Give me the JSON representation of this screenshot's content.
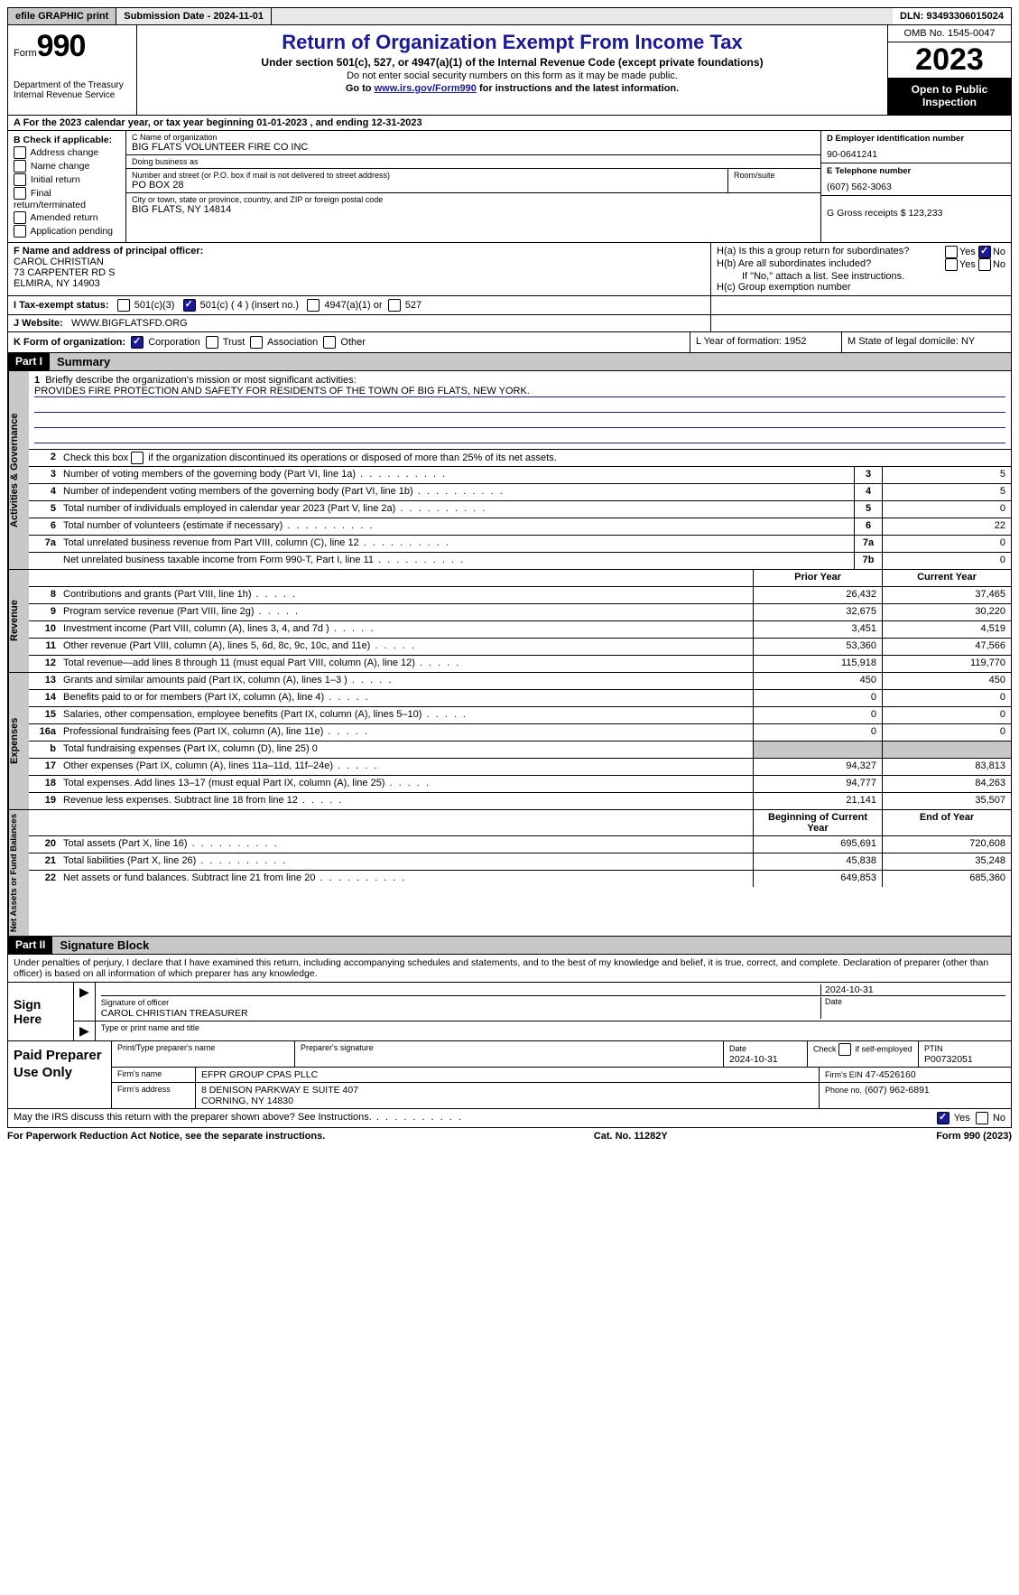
{
  "topbar": {
    "efile": "efile GRAPHIC print",
    "submission": "Submission Date - 2024-11-01",
    "dln": "DLN: 93493306015024"
  },
  "header": {
    "form_label": "Form",
    "form_num": "990",
    "title": "Return of Organization Exempt From Income Tax",
    "subtitle": "Under section 501(c), 527, or 4947(a)(1) of the Internal Revenue Code (except private foundations)",
    "ssn_note": "Do not enter social security numbers on this form as it may be made public.",
    "goto_pre": "Go to ",
    "goto_url": "www.irs.gov/Form990",
    "goto_post": " for instructions and the latest information.",
    "dept": "Department of the Treasury Internal Revenue Service",
    "omb": "OMB No. 1545-0047",
    "year": "2023",
    "open_public": "Open to Public Inspection"
  },
  "section_a": {
    "label": "A  For the 2023 calendar year, or tax year beginning 01-01-2023    , and ending 12-31-2023"
  },
  "col_b": {
    "label": "B Check if applicable:",
    "opts": [
      "Address change",
      "Name change",
      "Initial return",
      "Final return/terminated",
      "Amended return",
      "Application pending"
    ]
  },
  "col_c": {
    "name_label": "C Name of organization",
    "name": "BIG FLATS VOLUNTEER FIRE CO INC",
    "dba_label": "Doing business as",
    "dba": "",
    "addr_label": "Number and street (or P.O. box if mail is not delivered to street address)",
    "addr": "PO BOX 28",
    "room_label": "Room/suite",
    "room": "",
    "city_label": "City or town, state or province, country, and ZIP or foreign postal code",
    "city": "BIG FLATS, NY  14814"
  },
  "col_de": {
    "d_label": "D Employer identification number",
    "d_val": "90-0641241",
    "e_label": "E Telephone number",
    "e_val": "(607) 562-3063",
    "g_label": "G Gross receipts $ 123,233"
  },
  "row_f": {
    "label": "F  Name and address of principal officer:",
    "name": "CAROL CHRISTIAN",
    "addr1": "73 CARPENTER RD S",
    "addr2": "ELMIRA, NY  14903"
  },
  "row_h": {
    "ha": "H(a)  Is this a group return for subordinates?",
    "hb": "H(b)  Are all subordinates included?",
    "hb_note": "If \"No,\" attach a list. See instructions.",
    "hc": "H(c)  Group exemption number",
    "yes": "Yes",
    "no": "No"
  },
  "row_i": {
    "label": "I   Tax-exempt status:",
    "c3": "501(c)(3)",
    "c_insert": "501(c) ( 4 ) (insert no.)",
    "a1": "4947(a)(1) or",
    "s527": "527"
  },
  "row_j": {
    "label": "J   Website:",
    "val": "WWW.BIGFLATSFD.ORG"
  },
  "row_k": {
    "label": "K Form of organization:",
    "opts": [
      "Corporation",
      "Trust",
      "Association",
      "Other"
    ]
  },
  "row_l": {
    "label": "L Year of formation: 1952"
  },
  "row_m": {
    "label": "M State of legal domicile: NY"
  },
  "parts": {
    "p1": "Part I",
    "p1_title": "Summary",
    "p2": "Part II",
    "p2_title": "Signature Block"
  },
  "mission": {
    "q1": "Briefly describe the organization's mission or most significant activities:",
    "ans": "PROVIDES FIRE PROTECTION AND SAFETY FOR RESIDENTS OF THE TOWN OF BIG FLATS, NEW YORK.",
    "q2": "Check this box      if the organization discontinued its operations or disposed of more than 25% of its net assets."
  },
  "gov_lines": [
    {
      "n": "3",
      "d": "Number of voting members of the governing body (Part VI, line 1a)",
      "box": "3",
      "v": "5"
    },
    {
      "n": "4",
      "d": "Number of independent voting members of the governing body (Part VI, line 1b)",
      "box": "4",
      "v": "5"
    },
    {
      "n": "5",
      "d": "Total number of individuals employed in calendar year 2023 (Part V, line 2a)",
      "box": "5",
      "v": "0"
    },
    {
      "n": "6",
      "d": "Total number of volunteers (estimate if necessary)",
      "box": "6",
      "v": "22"
    },
    {
      "n": "7a",
      "d": "Total unrelated business revenue from Part VIII, column (C), line 12",
      "box": "7a",
      "v": "0"
    },
    {
      "n": "",
      "d": "Net unrelated business taxable income from Form 990-T, Part I, line 11",
      "box": "7b",
      "v": "0"
    }
  ],
  "col_hdrs": {
    "prior": "Prior Year",
    "current": "Current Year",
    "begin": "Beginning of Current Year",
    "end": "End of Year"
  },
  "rev_lines": [
    {
      "n": "8",
      "d": "Contributions and grants (Part VIII, line 1h)",
      "p": "26,432",
      "c": "37,465"
    },
    {
      "n": "9",
      "d": "Program service revenue (Part VIII, line 2g)",
      "p": "32,675",
      "c": "30,220"
    },
    {
      "n": "10",
      "d": "Investment income (Part VIII, column (A), lines 3, 4, and 7d )",
      "p": "3,451",
      "c": "4,519"
    },
    {
      "n": "11",
      "d": "Other revenue (Part VIII, column (A), lines 5, 6d, 8c, 9c, 10c, and 11e)",
      "p": "53,360",
      "c": "47,566"
    },
    {
      "n": "12",
      "d": "Total revenue—add lines 8 through 11 (must equal Part VIII, column (A), line 12)",
      "p": "115,918",
      "c": "119,770"
    }
  ],
  "exp_lines": [
    {
      "n": "13",
      "d": "Grants and similar amounts paid (Part IX, column (A), lines 1–3 )",
      "p": "450",
      "c": "450"
    },
    {
      "n": "14",
      "d": "Benefits paid to or for members (Part IX, column (A), line 4)",
      "p": "0",
      "c": "0"
    },
    {
      "n": "15",
      "d": "Salaries, other compensation, employee benefits (Part IX, column (A), lines 5–10)",
      "p": "0",
      "c": "0"
    },
    {
      "n": "16a",
      "d": "Professional fundraising fees (Part IX, column (A), line 11e)",
      "p": "0",
      "c": "0"
    },
    {
      "n": "b",
      "d": "Total fundraising expenses (Part IX, column (D), line 25) 0",
      "p": "",
      "c": "",
      "grey": true
    },
    {
      "n": "17",
      "d": "Other expenses (Part IX, column (A), lines 11a–11d, 11f–24e)",
      "p": "94,327",
      "c": "83,813"
    },
    {
      "n": "18",
      "d": "Total expenses. Add lines 13–17 (must equal Part IX, column (A), line 25)",
      "p": "94,777",
      "c": "84,263"
    },
    {
      "n": "19",
      "d": "Revenue less expenses. Subtract line 18 from line 12",
      "p": "21,141",
      "c": "35,507"
    }
  ],
  "net_lines": [
    {
      "n": "20",
      "d": "Total assets (Part X, line 16)",
      "p": "695,691",
      "c": "720,608"
    },
    {
      "n": "21",
      "d": "Total liabilities (Part X, line 26)",
      "p": "45,838",
      "c": "35,248"
    },
    {
      "n": "22",
      "d": "Net assets or fund balances. Subtract line 21 from line 20",
      "p": "649,853",
      "c": "685,360"
    }
  ],
  "sig": {
    "intro": "Under penalties of perjury, I declare that I have examined this return, including accompanying schedules and statements, and to the best of my knowledge and belief, it is true, correct, and complete. Declaration of preparer (other than officer) is based on all information of which preparer has any knowledge.",
    "sign_here": "Sign Here",
    "sig_label": "Signature of officer",
    "sig_name": "CAROL CHRISTIAN  TREASURER",
    "type_label": "Type or print name and title",
    "date_label": "Date",
    "date_val": "2024-10-31"
  },
  "prep": {
    "title": "Paid Preparer Use Only",
    "print_label": "Print/Type preparer's name",
    "sig_label": "Preparer's signature",
    "date_label": "Date",
    "date_val": "2024-10-31",
    "check_label": "Check        if self-employed",
    "ptin_label": "PTIN",
    "ptin_val": "P00732051",
    "firm_name_label": "Firm's name",
    "firm_name": "EFPR GROUP CPAS PLLC",
    "firm_ein_label": "Firm's EIN",
    "firm_ein": "47-4526160",
    "firm_addr_label": "Firm's address",
    "firm_addr1": "8 DENISON PARKWAY E SUITE 407",
    "firm_addr2": "CORNING, NY  14830",
    "phone_label": "Phone no.",
    "phone": "(607) 962-6891"
  },
  "discuss": {
    "q": "May the IRS discuss this return with the preparer shown above? See Instructions.",
    "yes": "Yes",
    "no": "No"
  },
  "footer": {
    "paperwork": "For Paperwork Reduction Act Notice, see the separate instructions.",
    "cat": "Cat. No. 11282Y",
    "form": "Form 990 (2023)"
  },
  "colors": {
    "link": "#1a1a99",
    "grey": "#c8c8c8"
  }
}
